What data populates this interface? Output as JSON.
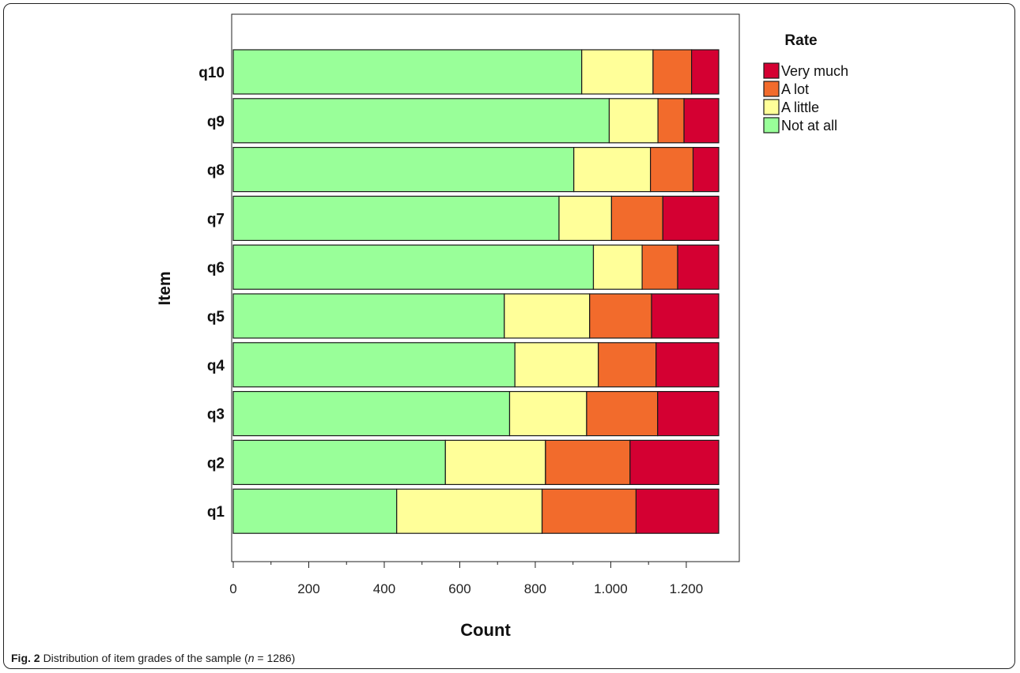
{
  "caption": {
    "label": "Fig. 2",
    "text_before": "Distribution of item grades of the sample (",
    "n_symbol": "n",
    "text_after": " = 1286)"
  },
  "chart_data": {
    "type": "bar",
    "orientation": "horizontal",
    "stacked": true,
    "xlabel": "Count",
    "ylabel": "Item",
    "xlim": [
      0,
      1330
    ],
    "x_ticks": [
      0,
      200,
      400,
      600,
      800,
      1000,
      1200
    ],
    "x_tick_labels": [
      "0",
      "200",
      "400",
      "600",
      "800",
      "1.000",
      "1.200"
    ],
    "categories": [
      "q10",
      "q9",
      "q8",
      "q7",
      "q6",
      "q5",
      "q4",
      "q3",
      "q2",
      "q1"
    ],
    "legend": {
      "title": "Rate",
      "position": "right",
      "order": [
        "Very much",
        "A lot",
        "A little",
        "Not at all"
      ]
    },
    "series": [
      {
        "name": "Not at all",
        "color": "#99ff99",
        "values": [
          923,
          996,
          902,
          863,
          954,
          718,
          746,
          732,
          562,
          433
        ]
      },
      {
        "name": "A little",
        "color": "#ffff99",
        "values": [
          189,
          129,
          203,
          139,
          129,
          226,
          221,
          204,
          265,
          385
        ]
      },
      {
        "name": "A lot",
        "color": "#f26b2c",
        "values": [
          102,
          69,
          113,
          136,
          94,
          164,
          153,
          188,
          224,
          249
        ]
      },
      {
        "name": "Very much",
        "color": "#d40032",
        "values": [
          72,
          92,
          68,
          148,
          109,
          178,
          166,
          162,
          235,
          219
        ]
      }
    ],
    "grid": false
  }
}
